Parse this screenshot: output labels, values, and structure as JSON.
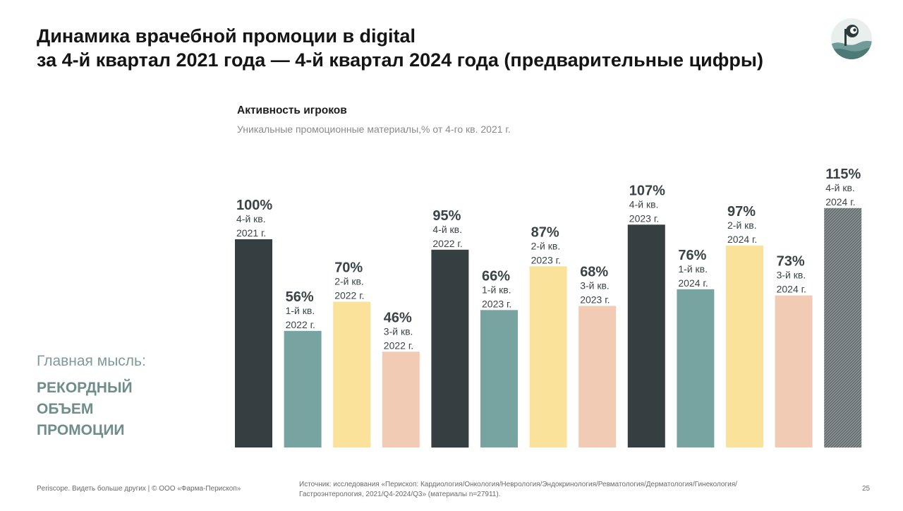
{
  "header": {
    "title_line1": "Динамика врачебной промоции в digital",
    "title_line2": "за 4-й квартал 2021 года — 4-й квартал 2024 года (предварительные цифры)"
  },
  "insight": {
    "label": "Главная мысль:",
    "line1": "РЕКОРДНЫЙ",
    "line2": "ОБЪЕМ",
    "line3": "ПРОМОЦИИ"
  },
  "footer": {
    "left": "Periscope. Видеть больше других | © ООО «Фарма-Перископ»",
    "source_line1": "Источник: исследования «Перископ: Кардиология/Онкология/Неврология/Эндокринология/Ревматология/Дерматология/Гинекология/",
    "source_line2": "Гастроэнтерология, 2021/Q4-2024/Q3» (материалы n=27911).",
    "page": "25"
  },
  "icons": {
    "logo": "periscope-logo-icon"
  },
  "colors": {
    "q4": "#353f42",
    "q1": "#77a4a1",
    "q2": "#fae29a",
    "q3": "#f2cbb4",
    "q4_preliminary": "#7d8486",
    "insight": "#6f8d8b"
  },
  "chart_data": {
    "type": "bar",
    "title": "Активность игроков",
    "subtitle": "Уникальные промоционные материалы,% от 4-го кв. 2021 г.",
    "ylim": [
      0,
      115
    ],
    "grid": false,
    "legend": "none",
    "categories": [
      "4-й кв. 2021 г.",
      "1-й кв. 2022 г.",
      "2-й кв. 2022 г.",
      "3-й кв. 2022 г.",
      "4-й кв. 2022 г.",
      "1-й кв. 2023 г.",
      "2-й кв. 2023 г.",
      "3-й кв. 2023 г.",
      "4-й кв. 2023 г.",
      "1-й кв. 2024 г.",
      "2-й кв. 2024 г.",
      "3-й кв. 2024 г.",
      "4-й кв. 2024 г."
    ],
    "label_lines": [
      [
        "4-й кв.",
        "2021 г."
      ],
      [
        "1-й кв.",
        "2022 г."
      ],
      [
        "2-й кв.",
        "2022 г."
      ],
      [
        "3-й кв.",
        "2022 г."
      ],
      [
        "4-й кв.",
        "2022 г."
      ],
      [
        "1-й кв.",
        "2023 г."
      ],
      [
        "2-й кв.",
        "2023 г."
      ],
      [
        "3-й кв.",
        "2023 г."
      ],
      [
        "4-й кв.",
        "2023 г."
      ],
      [
        "1-й кв.",
        "2024 г."
      ],
      [
        "2-й кв.",
        "2024 г."
      ],
      [
        "3-й кв.",
        "2024 г."
      ],
      [
        "4-й кв.",
        "2024 г."
      ]
    ],
    "values": [
      100,
      56,
      70,
      46,
      95,
      66,
      87,
      68,
      107,
      76,
      97,
      73,
      115
    ],
    "value_labels": [
      "100%",
      "56%",
      "70%",
      "46%",
      "95%",
      "66%",
      "87%",
      "68%",
      "107%",
      "76%",
      "97%",
      "73%",
      "115%"
    ],
    "quarter": [
      "q4",
      "q1",
      "q2",
      "q3",
      "q4",
      "q1",
      "q2",
      "q3",
      "q4",
      "q1",
      "q2",
      "q3",
      "q4_preliminary"
    ]
  }
}
